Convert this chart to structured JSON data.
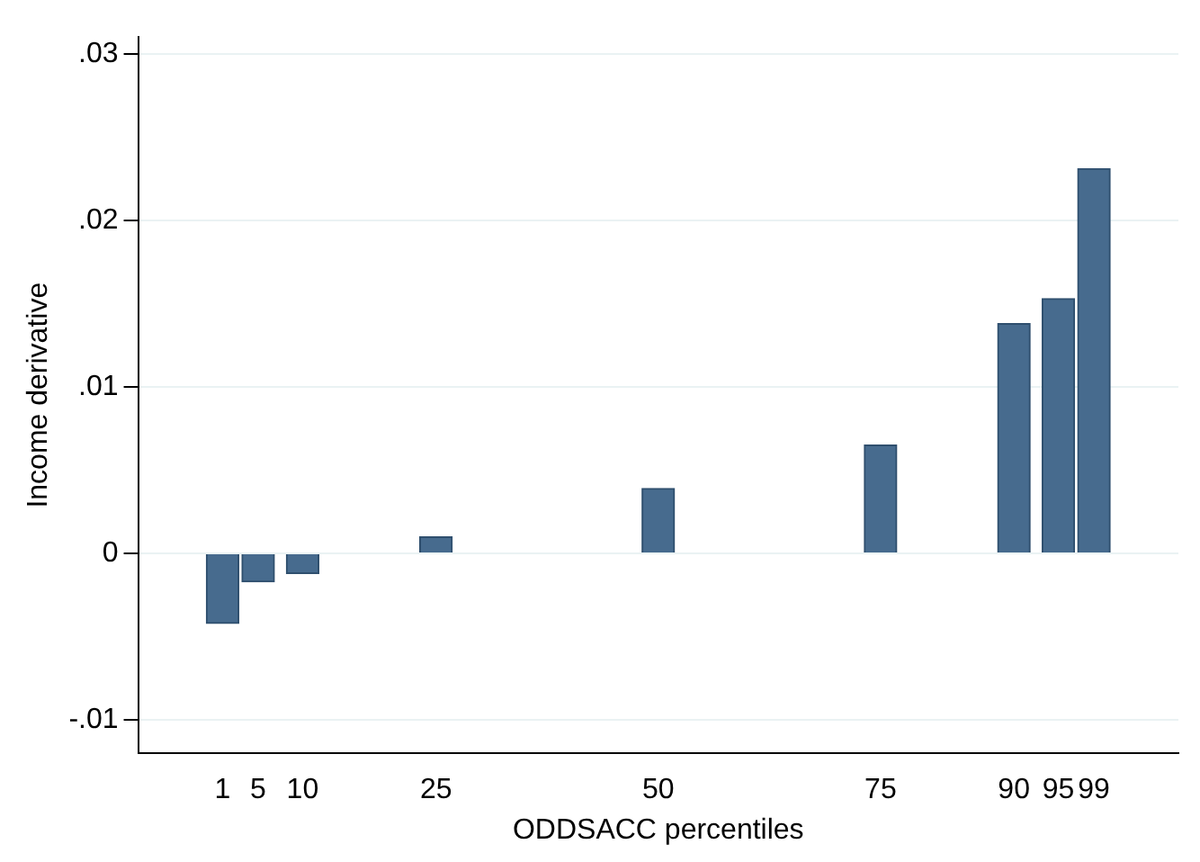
{
  "chart_data": {
    "type": "bar",
    "xlabel": "ODDSACC percentiles",
    "ylabel": "Income derivative",
    "x": [
      1,
      5,
      10,
      25,
      50,
      75,
      90,
      95,
      99
    ],
    "series": [
      {
        "color": "#476b8e",
        "values": [
          -0.0042,
          -0.0017,
          -0.0012,
          0.001,
          0.0039,
          0.0065,
          0.0138,
          0.0153,
          0.0231
        ]
      }
    ],
    "xlim": [
      -2,
      102
    ],
    "xticks": [
      1,
      5,
      10,
      25,
      50,
      75,
      90,
      95,
      99
    ],
    "ylim": [
      -0.012,
      0.031
    ],
    "yticks": [
      {
        "value": -0.01,
        "label": "-.01"
      },
      0,
      {
        "value": 0.01,
        "label": ".01"
      },
      {
        "value": 0.02,
        "label": ".02"
      },
      {
        "value": 0.03,
        "label": ".03"
      }
    ],
    "grid": "y",
    "legend": false
  }
}
